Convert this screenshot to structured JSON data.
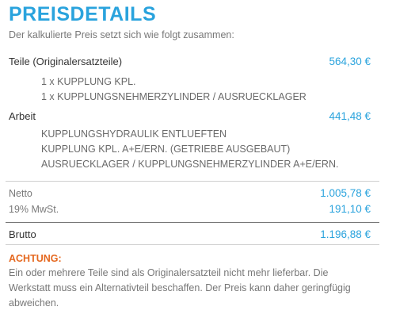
{
  "header": {
    "title": "PREISDETAILS",
    "subtitle": "Der kalkulierte Preis setzt sich wie folgt zusammen:"
  },
  "parts": {
    "label": "Teile (Originalersatzteile)",
    "amount": "564,30 €",
    "items": [
      "1 x KUPPLUNG KPL.",
      "1 x KUPPLUNGSNEHMERZYLINDER / AUSRUECKLAGER"
    ]
  },
  "labor": {
    "label": "Arbeit",
    "amount": "441,48 €",
    "items": [
      "KUPPLUNGSHYDRAULIK ENTLUEFTEN",
      "KUPPLUNG KPL. A+E/ERN. (GETRIEBE AUSGEBAUT)",
      "AUSRUECKLAGER / KUPPLUNGSNEHMERZYLINDER A+E/ERN."
    ]
  },
  "totals": {
    "net_label": "Netto",
    "net_amount": "1.005,78 €",
    "vat_label": "19% MwSt.",
    "vat_amount": "191,10 €",
    "gross_label": "Brutto",
    "gross_amount": "1.196,88 €"
  },
  "notice": {
    "title": "ACHTUNG:",
    "text": "Ein oder mehrere Teile sind als Originalersatzteil nicht mehr lieferbar. Die Werkstatt muss ein Alternativteil beschaffen. Der Preis kann daher geringfügig abweichen."
  },
  "colors": {
    "accent": "#2aa3dd",
    "warning": "#e5681f"
  }
}
